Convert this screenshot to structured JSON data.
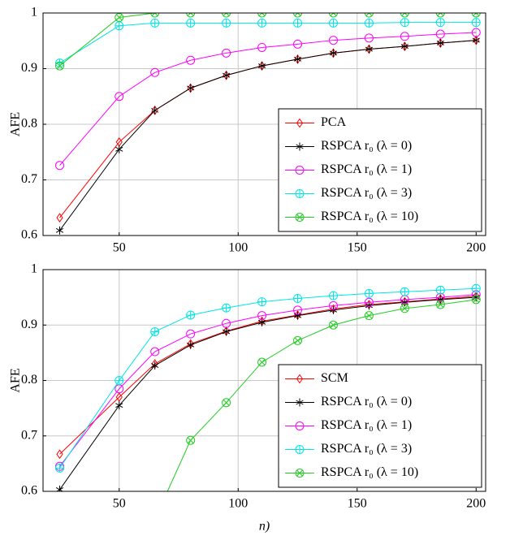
{
  "chart_data": [
    {
      "type": "line",
      "ylabel": "AFE",
      "x": [
        25,
        50,
        65,
        80,
        95,
        110,
        125,
        140,
        155,
        170,
        185,
        200
      ],
      "xlim": [
        18,
        204
      ],
      "ylim": [
        0.6,
        1
      ],
      "xticks": [
        50,
        100,
        150,
        200
      ],
      "yticks": [
        0.6,
        0.7,
        0.8,
        0.9,
        1
      ],
      "grid": true,
      "legend": "lower right",
      "series": [
        {
          "name": "PCA",
          "color": "#ff0000",
          "marker": "diamond",
          "values": [
            0.632,
            0.768,
            0.825,
            0.865,
            0.888,
            0.905,
            0.917,
            0.928,
            0.935,
            0.94,
            0.946,
            0.951
          ]
        },
        {
          "name": "RSPCA r₀ (λ = 0)",
          "color": "#000000",
          "marker": "star",
          "values": [
            0.609,
            0.755,
            0.825,
            0.865,
            0.888,
            0.905,
            0.917,
            0.928,
            0.935,
            0.94,
            0.946,
            0.951
          ]
        },
        {
          "name": "RSPCA r₀ (λ = 1)",
          "color": "#ff00ff",
          "marker": "circle",
          "values": [
            0.726,
            0.85,
            0.893,
            0.915,
            0.928,
            0.938,
            0.944,
            0.951,
            0.955,
            0.958,
            0.962,
            0.965
          ]
        },
        {
          "name": "RSPCA r₀ (λ = 3)",
          "color": "#00e5e5",
          "marker": "oplus",
          "values": [
            0.91,
            0.977,
            0.982,
            0.982,
            0.982,
            0.982,
            0.982,
            0.982,
            0.982,
            0.983,
            0.983,
            0.983
          ]
        },
        {
          "name": "RSPCA r₀ (λ = 10)",
          "color": "#22cc22",
          "marker": "otimes",
          "values": [
            0.905,
            0.992,
            1,
            1,
            1,
            1,
            1,
            1,
            1,
            1,
            1,
            1
          ]
        }
      ]
    },
    {
      "type": "line",
      "ylabel": "AFE",
      "xlabel": "n)",
      "x": [
        25,
        50,
        65,
        80,
        95,
        110,
        125,
        140,
        155,
        170,
        185,
        200
      ],
      "xlim": [
        18,
        204
      ],
      "ylim": [
        0.6,
        1
      ],
      "xticks": [
        50,
        100,
        150,
        200
      ],
      "yticks": [
        0.6,
        0.7,
        0.8,
        0.9,
        1
      ],
      "grid": true,
      "legend": "lower right",
      "series": [
        {
          "name": "SCM",
          "color": "#ff0000",
          "marker": "diamond",
          "values": [
            0.667,
            0.77,
            0.83,
            0.866,
            0.889,
            0.907,
            0.918,
            0.929,
            0.937,
            0.942,
            0.947,
            0.952
          ]
        },
        {
          "name": "RSPCA r₀ (λ = 0)",
          "color": "#000000",
          "marker": "star",
          "values": [
            0.603,
            0.755,
            0.827,
            0.864,
            0.888,
            0.905,
            0.917,
            0.927,
            0.935,
            0.941,
            0.946,
            0.95
          ]
        },
        {
          "name": "RSPCA r₀ (λ = 1)",
          "color": "#ff00ff",
          "marker": "circle",
          "values": [
            0.645,
            0.785,
            0.852,
            0.884,
            0.903,
            0.917,
            0.927,
            0.935,
            0.941,
            0.946,
            0.95,
            0.955
          ]
        },
        {
          "name": "RSPCA r₀ (λ = 3)",
          "color": "#00e5e5",
          "marker": "oplus",
          "values": [
            0.642,
            0.8,
            0.888,
            0.918,
            0.931,
            0.942,
            0.948,
            0.953,
            0.957,
            0.96,
            0.963,
            0.966
          ]
        },
        {
          "name": "RSPCA r₀ (λ = 10)",
          "color": "#22cc22",
          "marker": "otimes",
          "values": [
            null,
            null,
            0.55,
            0.692,
            0.76,
            0.833,
            0.872,
            0.9,
            0.917,
            0.93,
            0.937,
            0.946
          ]
        }
      ]
    }
  ]
}
